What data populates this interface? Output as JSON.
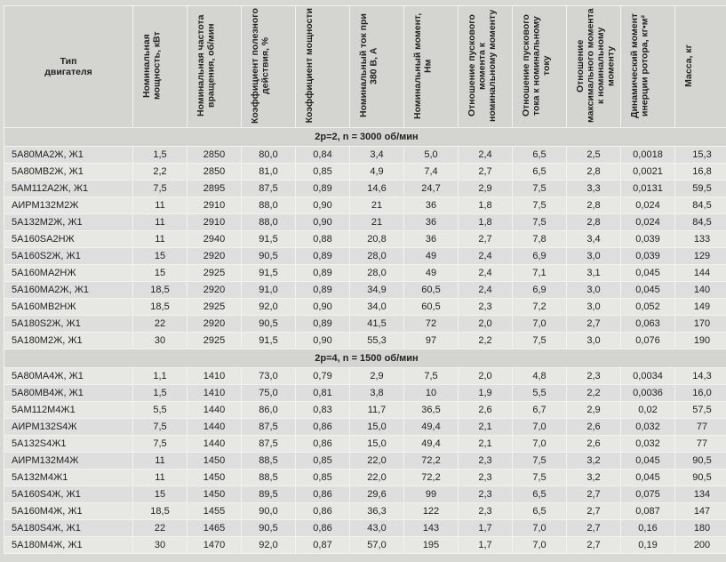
{
  "table": {
    "columns": [
      {
        "label": "Тип\nдвигателя",
        "vertical": false
      },
      {
        "label": "Номинальная мощность, кВт",
        "vertical": true
      },
      {
        "label": "Номинальная частота вращения, об/мин",
        "vertical": true
      },
      {
        "label": "Коэффициент полезного действия, %",
        "vertical": true
      },
      {
        "label": "Коэффициент мощности",
        "vertical": true
      },
      {
        "label": "Номинальный ток при 380 В, А",
        "vertical": true
      },
      {
        "label": "Номинальный момент, Нм",
        "vertical": true
      },
      {
        "label": "Отношение пускового момента к номинальному моменту",
        "vertical": true
      },
      {
        "label": "Отношение пускового тока к номинальному току",
        "vertical": true
      },
      {
        "label": "Отношение максимального момента к номинальному моменту",
        "vertical": true
      },
      {
        "label": "Динамический момент инерции ротора, кг•м²",
        "vertical": true
      },
      {
        "label": "Масса, кг",
        "vertical": true
      }
    ],
    "sections": [
      {
        "title": "2p=2, n = 3000 об/мин",
        "rows": [
          [
            "5А80МА2Ж, Ж1",
            "1,5",
            "2850",
            "80,0",
            "0,84",
            "3,4",
            "5,0",
            "2,4",
            "6,5",
            "2,5",
            "0,0018",
            "15,3"
          ],
          [
            "5А80МВ2Ж, Ж1",
            "2,2",
            "2850",
            "81,0",
            "0,85",
            "4,9",
            "7,4",
            "2,7",
            "6,5",
            "2,8",
            "0,0021",
            "16,8"
          ],
          [
            "5АМ112А2Ж, Ж1",
            "7,5",
            "2895",
            "87,5",
            "0,89",
            "14,6",
            "24,7",
            "2,9",
            "7,5",
            "3,3",
            "0,0131",
            "59,5"
          ],
          [
            "АИРМ132М2Ж",
            "11",
            "2910",
            "88,0",
            "0,90",
            "21",
            "36",
            "1,8",
            "7,5",
            "2,8",
            "0,024",
            "84,5"
          ],
          [
            "5А132М2Ж, Ж1",
            "11",
            "2910",
            "88,0",
            "0,90",
            "21",
            "36",
            "1,8",
            "7,5",
            "2,8",
            "0,024",
            "84,5"
          ],
          [
            "5А160SА2НЖ",
            "11",
            "2940",
            "91,5",
            "0,88",
            "20,8",
            "36",
            "2,7",
            "7,8",
            "3,4",
            "0,039",
            "133"
          ],
          [
            "5А160S2Ж, Ж1",
            "15",
            "2920",
            "90,5",
            "0,89",
            "28,0",
            "49",
            "2,4",
            "6,9",
            "3,0",
            "0,039",
            "129"
          ],
          [
            "5А160МА2НЖ",
            "15",
            "2925",
            "91,5",
            "0,89",
            "28,0",
            "49",
            "2,4",
            "7,1",
            "3,1",
            "0,045",
            "144"
          ],
          [
            "5А160МА2Ж, Ж1",
            "18,5",
            "2920",
            "91,0",
            "0,89",
            "34,9",
            "60,5",
            "2,4",
            "6,9",
            "3,0",
            "0,045",
            "140"
          ],
          [
            "5А160МВ2НЖ",
            "18,5",
            "2925",
            "92,0",
            "0,90",
            "34,0",
            "60,5",
            "2,3",
            "7,2",
            "3,0",
            "0,052",
            "149"
          ],
          [
            "5А180S2Ж, Ж1",
            "22",
            "2920",
            "90,5",
            "0,89",
            "41,5",
            "72",
            "2,0",
            "7,0",
            "2,7",
            "0,063",
            "170"
          ],
          [
            "5А180М2Ж, Ж1",
            "30",
            "2925",
            "91,5",
            "0,90",
            "55,3",
            "97",
            "2,2",
            "7,5",
            "3,0",
            "0,076",
            "190"
          ]
        ]
      },
      {
        "title": "2p=4, n = 1500 об/мин",
        "rows": [
          [
            "5А80МА4Ж, Ж1",
            "1,1",
            "1410",
            "73,0",
            "0,79",
            "2,9",
            "7,5",
            "2,0",
            "4,8",
            "2,3",
            "0,0034",
            "14,3"
          ],
          [
            "5А80МВ4Ж, Ж1",
            "1,5",
            "1410",
            "75,0",
            "0,81",
            "3,8",
            "10",
            "1,9",
            "5,5",
            "2,2",
            "0,0036",
            "16,0"
          ],
          [
            "5АМ112М4Ж1",
            "5,5",
            "1440",
            "86,0",
            "0,83",
            "11,7",
            "36,5",
            "2,6",
            "6,7",
            "2,9",
            "0,02",
            "57,5"
          ],
          [
            "АИРМ132S4Ж",
            "7,5",
            "1440",
            "87,5",
            "0,86",
            "15,0",
            "49,4",
            "2,1",
            "7,0",
            "2,6",
            "0,032",
            "77"
          ],
          [
            "5А132S4Ж1",
            "7,5",
            "1440",
            "87,5",
            "0,86",
            "15,0",
            "49,4",
            "2,1",
            "7,0",
            "2,6",
            "0,032",
            "77"
          ],
          [
            "АИРМ132М4Ж",
            "11",
            "1450",
            "88,5",
            "0,85",
            "22,0",
            "72,2",
            "2,3",
            "7,5",
            "3,2",
            "0,045",
            "90,5"
          ],
          [
            "5А132М4Ж1",
            "11",
            "1450",
            "88,5",
            "0,85",
            "22,0",
            "72,2",
            "2,3",
            "7,5",
            "3,2",
            "0,045",
            "90,5"
          ],
          [
            "5А160S4Ж, Ж1",
            "15",
            "1450",
            "89,5",
            "0,86",
            "29,6",
            "99",
            "2,3",
            "6,5",
            "2,7",
            "0,075",
            "134"
          ],
          [
            "5А160М4Ж, Ж1",
            "18,5",
            "1455",
            "90,0",
            "0,86",
            "36,3",
            "122",
            "2,3",
            "6,5",
            "2,7",
            "0,087",
            "147"
          ],
          [
            "5А180S4Ж, Ж1",
            "22",
            "1465",
            "90,5",
            "0,86",
            "43,0",
            "143",
            "1,7",
            "7,0",
            "2,7",
            "0,16",
            "180"
          ],
          [
            "5А180М4Ж, Ж1",
            "30",
            "1470",
            "92,0",
            "0,87",
            "57,0",
            "195",
            "1,7",
            "7,0",
            "2,7",
            "0,19",
            "200"
          ]
        ]
      }
    ]
  },
  "style": {
    "header_bg": "#d4d4d0",
    "row_odd_bg": "#e7e7e3",
    "row_even_bg": "#dedede",
    "grid_color": "#f2f2ef",
    "page_bg": "#d8d8d4",
    "text_color": "#222222",
    "header_fontsize_pt": 10.5,
    "body_fontsize_pt": 11,
    "font_family": "Arial"
  }
}
